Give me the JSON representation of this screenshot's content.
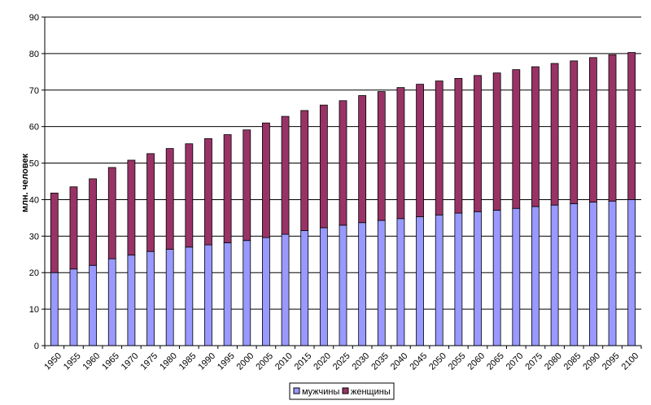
{
  "chart_data": {
    "type": "bar",
    "stacked": true,
    "title": "",
    "xlabel": "",
    "ylabel": "млн. человек",
    "ylim": [
      0,
      90
    ],
    "yticks": [
      0,
      10,
      20,
      30,
      40,
      50,
      60,
      70,
      80,
      90
    ],
    "grid": true,
    "legend_position": "bottom",
    "categories": [
      "1950",
      "1955",
      "1960",
      "1965",
      "1970",
      "1975",
      "1980",
      "1985",
      "1990",
      "1995",
      "2000",
      "2005",
      "2010",
      "2015",
      "2020",
      "2025",
      "2030",
      "2035",
      "2040",
      "2045",
      "2050",
      "2055",
      "2060",
      "2065",
      "2070",
      "2075",
      "2080",
      "2085",
      "2090",
      "2095",
      "2100"
    ],
    "series": [
      {
        "name": "мужчины",
        "color": "#9999ff",
        "values": [
          20.0,
          21.0,
          22.0,
          23.8,
          24.8,
          25.8,
          26.4,
          27.0,
          27.6,
          28.2,
          28.8,
          29.6,
          30.5,
          31.5,
          32.3,
          33.0,
          33.7,
          34.3,
          34.8,
          35.3,
          35.8,
          36.3,
          36.7,
          37.1,
          37.6,
          38.1,
          38.5,
          38.9,
          39.3,
          39.6,
          40.0
        ]
      },
      {
        "name": "женщины",
        "color": "#993366",
        "values": [
          21.8,
          22.5,
          23.7,
          25.0,
          26.0,
          26.8,
          27.6,
          28.3,
          29.1,
          29.6,
          30.3,
          31.4,
          32.3,
          32.9,
          33.6,
          34.1,
          34.8,
          35.3,
          35.9,
          36.3,
          36.7,
          36.9,
          37.3,
          37.6,
          38.0,
          38.3,
          38.8,
          39.1,
          39.6,
          40.1,
          40.3
        ]
      }
    ]
  }
}
